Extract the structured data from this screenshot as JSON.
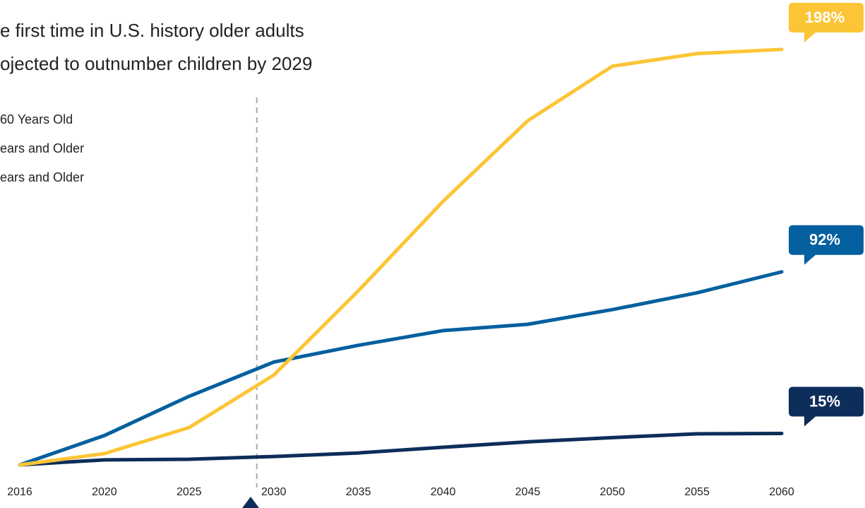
{
  "chart_data": {
    "type": "line",
    "title_lines": [
      "e first time in U.S. history older adults",
      "ojected to outnumber children by 2029"
    ],
    "categories": [
      "2016",
      "2020",
      "2025",
      "2030",
      "2035",
      "2040",
      "2045",
      "2050",
      "2055",
      "2060"
    ],
    "reference_x": 2029,
    "ylim": [
      0,
      200
    ],
    "series": [
      {
        "name": "60 Years Old",
        "color": "#0d2d5a",
        "values": [
          0,
          2.4,
          2.7,
          4,
          5.7,
          8.4,
          11,
          13,
          14.8,
          15
        ],
        "value_labels": [
          null,
          null,
          null,
          null,
          null,
          null,
          null,
          null,
          null,
          "15%"
        ]
      },
      {
        "name": "ears and Older",
        "color": "#04609e",
        "values": [
          0,
          14,
          32.7,
          49,
          57,
          64,
          67,
          74,
          82,
          92
        ],
        "value_labels": [
          null,
          null,
          null,
          null,
          null,
          null,
          null,
          null,
          null,
          "92%"
        ]
      },
      {
        "name": "ears and Older",
        "color": "#fcc536",
        "values": [
          0,
          5.4,
          17.8,
          42.8,
          83,
          125.6,
          164,
          190,
          196,
          198
        ],
        "value_labels": [
          null,
          null,
          null,
          null,
          null,
          null,
          null,
          null,
          null,
          "198%"
        ]
      }
    ]
  }
}
